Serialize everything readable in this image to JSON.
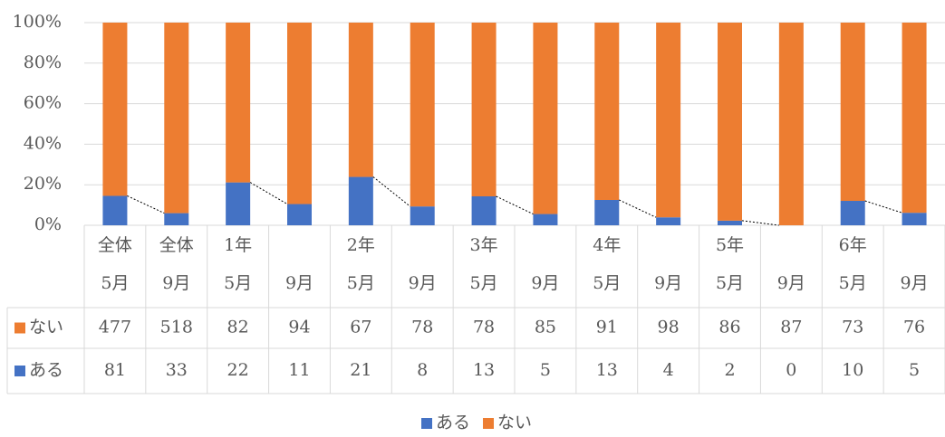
{
  "chart_data": {
    "type": "bar",
    "stacking": "percent",
    "categories": [
      [
        "全体",
        "5月"
      ],
      [
        "全体",
        "9月"
      ],
      [
        "1年",
        "5月"
      ],
      [
        "9月"
      ],
      [
        "2年",
        "5月"
      ],
      [
        "9月"
      ],
      [
        "3年",
        "5月"
      ],
      [
        "9月"
      ],
      [
        "4年",
        "5月"
      ],
      [
        "9月"
      ],
      [
        "5年",
        "5月"
      ],
      [
        "9月"
      ],
      [
        "6年",
        "5月"
      ],
      [
        "9月"
      ]
    ],
    "series": [
      {
        "name": "ある",
        "color": "#4472c4",
        "values": [
          81,
          33,
          22,
          11,
          21,
          8,
          13,
          5,
          13,
          4,
          2,
          0,
          10,
          5
        ]
      },
      {
        "name": "ない",
        "color": "#ed7d31",
        "values": [
          477,
          518,
          82,
          94,
          67,
          78,
          78,
          85,
          91,
          98,
          86,
          87,
          73,
          76
        ]
      }
    ],
    "ylim": [
      0,
      100
    ],
    "yticks": [
      {
        "value": 0,
        "label": "0%"
      },
      {
        "value": 20,
        "label": "20%"
      },
      {
        "value": 40,
        "label": "40%"
      },
      {
        "value": 60,
        "label": "60%"
      },
      {
        "value": 80,
        "label": "80%"
      },
      {
        "value": 100,
        "label": "100%"
      }
    ],
    "grid": true,
    "legend": "bottom",
    "data_table": true
  }
}
